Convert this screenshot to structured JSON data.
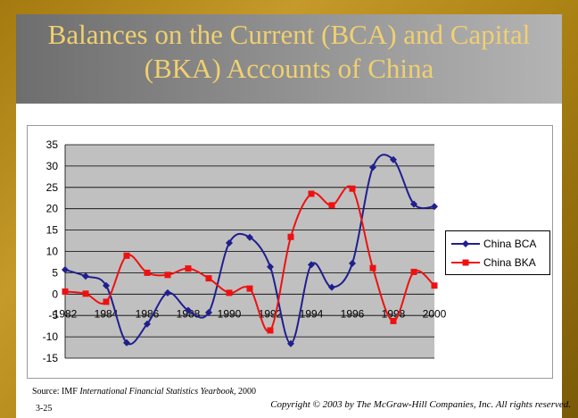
{
  "slide": {
    "title_line1": "Balances on the Current (BCA) and Capital",
    "title_line2": "(BKA) Accounts of China",
    "source_prefix": "Source: IMF ",
    "source_italic": "International Financial Statistics Yearbook,",
    "source_suffix": " 2000",
    "page_number": "3-25",
    "copyright": "Copyright © 2003 by The McGraw-Hill Companies, Inc.  All rights reserved."
  },
  "chart_data": {
    "type": "line",
    "ylim": [
      -15,
      35
    ],
    "yticks": [
      -15,
      -10,
      -5,
      0,
      5,
      10,
      15,
      20,
      25,
      30,
      35
    ],
    "xlim": [
      1982,
      2000
    ],
    "xtick_labels": [
      "1982",
      "1984",
      "1986",
      "1988",
      "1990",
      "1992",
      "1994",
      "1996",
      "1998",
      "2000"
    ],
    "x": [
      1982,
      1983,
      1984,
      1985,
      1986,
      1987,
      1988,
      1989,
      1990,
      1991,
      1992,
      1993,
      1994,
      1995,
      1996,
      1997,
      1998,
      1999,
      2000
    ],
    "series": [
      {
        "name": "China BCA",
        "color": "#1f1f8f",
        "marker": "diamond",
        "values": [
          5.7,
          4.2,
          2.0,
          -11.4,
          -7.0,
          0.3,
          -3.8,
          -4.3,
          12.0,
          13.3,
          6.4,
          -11.6,
          6.9,
          1.6,
          7.2,
          29.7,
          31.5,
          21.1,
          20.5
        ]
      },
      {
        "name": "China BKA",
        "color": "#ee1111",
        "marker": "square",
        "values": [
          0.6,
          0.1,
          -1.8,
          9.0,
          5.0,
          4.5,
          6.0,
          3.7,
          0.3,
          1.3,
          -8.5,
          13.4,
          23.5,
          20.8,
          24.7,
          6.1,
          -6.3,
          5.2,
          2.0
        ]
      }
    ],
    "legend_position": "right",
    "grid": "horizontal",
    "plot_background": "#c0c0c0"
  }
}
